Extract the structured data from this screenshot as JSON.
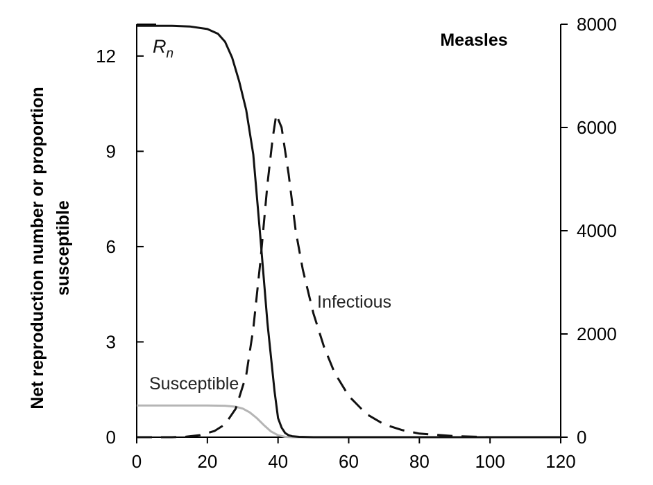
{
  "chart_data": {
    "type": "line",
    "title": "Measles",
    "ylabel_left": [
      "Net reproduction number or proportion",
      "susceptible"
    ],
    "xlabel": "",
    "xlim": [
      0,
      120
    ],
    "x_ticks": [
      0,
      20,
      40,
      60,
      80,
      100,
      120
    ],
    "ylim_left": [
      0,
      13
    ],
    "y_ticks_left": [
      0,
      3,
      6,
      9,
      12
    ],
    "ylim_right": [
      0,
      8000
    ],
    "y_ticks_right": [
      0,
      2000,
      4000,
      6000,
      8000
    ],
    "annotations": {
      "rn_main": "R",
      "rn_sub": "n",
      "infectious": "Infectious",
      "susceptible": "Susceptible"
    },
    "series": [
      {
        "name": "Rn",
        "axis": "left",
        "color": "#111111",
        "dash": "solid",
        "x": [
          0,
          10,
          15,
          20,
          23,
          25,
          27,
          29,
          31,
          33,
          35,
          37,
          39,
          40,
          41,
          42,
          43,
          44,
          46,
          50,
          60,
          80,
          120
        ],
        "y": [
          12.95,
          12.95,
          12.93,
          12.85,
          12.7,
          12.45,
          11.95,
          11.2,
          10.3,
          8.9,
          6.3,
          3.6,
          1.45,
          0.6,
          0.3,
          0.13,
          0.06,
          0.03,
          0.01,
          0.0,
          0.0,
          0.0,
          0.0
        ]
      },
      {
        "name": "Infectious",
        "axis": "right",
        "color": "#111111",
        "dash": "dashed",
        "x": [
          0,
          10,
          14,
          18,
          22,
          25,
          28,
          31,
          33,
          35,
          37,
          38.5,
          39.5,
          41,
          43,
          45,
          47,
          50,
          53,
          56,
          60,
          65,
          70,
          75,
          80,
          90,
          100,
          120
        ],
        "y": [
          0,
          0,
          10,
          40,
          120,
          250,
          550,
          1200,
          2100,
          3400,
          4900,
          5800,
          6250,
          6000,
          5100,
          4000,
          3250,
          2400,
          1750,
          1250,
          800,
          450,
          250,
          140,
          70,
          20,
          0,
          0
        ]
      },
      {
        "name": "Susceptible",
        "axis": "left",
        "color": "#b5b5b5",
        "dash": "solid",
        "x": [
          0,
          10,
          20,
          25,
          28,
          30,
          32,
          34,
          36,
          38,
          40,
          42,
          44,
          120
        ],
        "y": [
          1.0,
          1.0,
          1.0,
          0.99,
          0.96,
          0.9,
          0.78,
          0.6,
          0.38,
          0.18,
          0.06,
          0.01,
          0.0,
          0.0
        ]
      }
    ],
    "grid": false,
    "legend": "none"
  }
}
